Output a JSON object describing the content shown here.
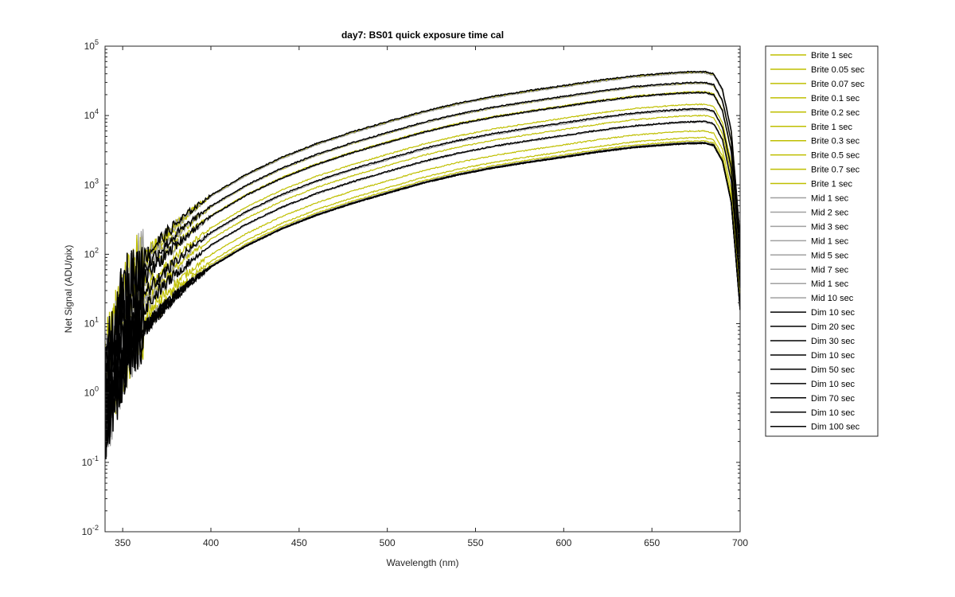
{
  "chart_data": {
    "type": "line",
    "title": "day7: BS01  quick exposure time cal",
    "xlabel": "Wavelength (nm)",
    "ylabel": "Net Signal (ADU/pix)",
    "xlim": [
      340,
      700
    ],
    "ylim": [
      0.01,
      100000
    ],
    "yscale": "log",
    "grid": false,
    "legend_position": "outside-right",
    "x_ticks": [
      350,
      400,
      450,
      500,
      550,
      600,
      650,
      700
    ],
    "x_tick_labels": [
      "350",
      "400",
      "450",
      "500",
      "550",
      "600",
      "650",
      "700"
    ],
    "y_ticks": [
      0.01,
      0.1,
      1,
      10,
      100,
      1000,
      10000,
      100000
    ],
    "y_tick_labels": [
      {
        "base": "10",
        "exp": "-2"
      },
      {
        "base": "10",
        "exp": "-1"
      },
      {
        "base": "10",
        "exp": "0"
      },
      {
        "base": "10",
        "exp": "1"
      },
      {
        "base": "10",
        "exp": "2"
      },
      {
        "base": "10",
        "exp": "3"
      },
      {
        "base": "10",
        "exp": "4"
      },
      {
        "base": "10",
        "exp": "5"
      }
    ],
    "colors": {
      "Brite": "#bfbf00",
      "Mid": "#a0a0a0",
      "Dim": "#000000"
    },
    "shape": {
      "x": [
        340,
        345,
        350,
        355,
        360,
        370,
        380,
        390,
        400,
        420,
        440,
        460,
        480,
        500,
        520,
        540,
        560,
        580,
        600,
        620,
        640,
        660,
        670,
        680,
        685,
        690,
        695,
        700
      ],
      "y_relative": [
        7e-05,
        0.0002,
        0.0006,
        0.0012,
        0.0018,
        0.0035,
        0.0063,
        0.0105,
        0.0165,
        0.033,
        0.058,
        0.092,
        0.135,
        0.19,
        0.265,
        0.35,
        0.44,
        0.53,
        0.63,
        0.75,
        0.87,
        0.955,
        0.99,
        1.0,
        0.93,
        0.55,
        0.14,
        0.004
      ]
    },
    "series": [
      {
        "name": "Brite 1 sec",
        "group": "Brite",
        "peak": 42000
      },
      {
        "name": "Brite 0.05 sec",
        "group": "Brite",
        "peak": 4300
      },
      {
        "name": "Brite 0.07 sec",
        "group": "Brite",
        "peak": 4800
      },
      {
        "name": "Brite 0.1 sec",
        "group": "Brite",
        "peak": 6000
      },
      {
        "name": "Brite 0.2 sec",
        "group": "Brite",
        "peak": 10000
      },
      {
        "name": "Brite 1 sec",
        "group": "Brite",
        "peak": 42000
      },
      {
        "name": "Brite 0.3 sec",
        "group": "Brite",
        "peak": 14500
      },
      {
        "name": "Brite 0.5 sec",
        "group": "Brite",
        "peak": 22000
      },
      {
        "name": "Brite 0.7 sec",
        "group": "Brite",
        "peak": 29000
      },
      {
        "name": "Brite 1 sec",
        "group": "Brite",
        "peak": 42000
      },
      {
        "name": "Mid 1 sec",
        "group": "Mid",
        "peak": 4100
      },
      {
        "name": "Mid 2 sec",
        "group": "Mid",
        "peak": 8000
      },
      {
        "name": "Mid 3 sec",
        "group": "Mid",
        "peak": 12000
      },
      {
        "name": "Mid 1 sec",
        "group": "Mid",
        "peak": 4100
      },
      {
        "name": "Mid 5 sec",
        "group": "Mid",
        "peak": 21000
      },
      {
        "name": "Mid 7 sec",
        "group": "Mid",
        "peak": 29000
      },
      {
        "name": "Mid 1 sec",
        "group": "Mid",
        "peak": 4100
      },
      {
        "name": "Mid 10 sec",
        "group": "Mid",
        "peak": 41000
      },
      {
        "name": "Dim 10 sec",
        "group": "Dim",
        "peak": 4000
      },
      {
        "name": "Dim 20 sec",
        "group": "Dim",
        "peak": 8200
      },
      {
        "name": "Dim 30 sec",
        "group": "Dim",
        "peak": 12500
      },
      {
        "name": "Dim 10 sec",
        "group": "Dim",
        "peak": 4000
      },
      {
        "name": "Dim 50 sec",
        "group": "Dim",
        "peak": 21500
      },
      {
        "name": "Dim 10 sec",
        "group": "Dim",
        "peak": 4000
      },
      {
        "name": "Dim 70 sec",
        "group": "Dim",
        "peak": 30000
      },
      {
        "name": "Dim 10 sec",
        "group": "Dim",
        "peak": 4000
      },
      {
        "name": "Dim 100 sec",
        "group": "Dim",
        "peak": 43000
      }
    ]
  }
}
